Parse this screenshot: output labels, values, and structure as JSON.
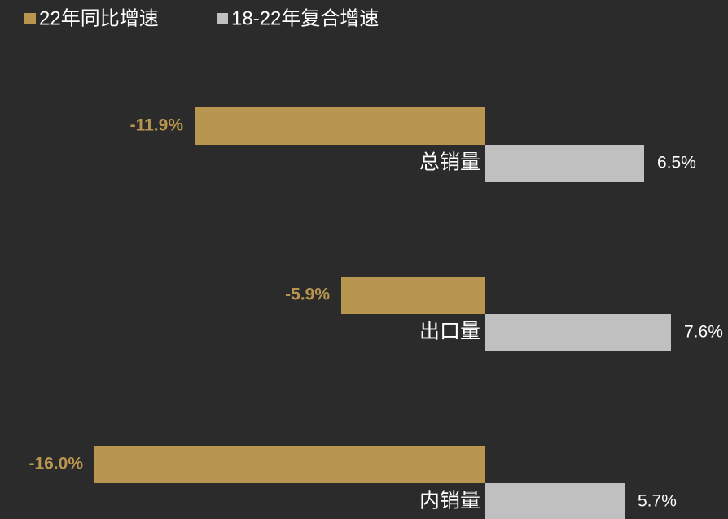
{
  "chart_data": {
    "type": "bar",
    "orientation": "horizontal",
    "categories": [
      "总销量",
      "出口量",
      "内销量"
    ],
    "series": [
      {
        "name": "22年同比增速",
        "color": "#b8964f",
        "values": [
          -11.9,
          -5.9,
          -16.0
        ],
        "value_labels": [
          "-11.9%",
          "-5.9%",
          "-16.0%"
        ]
      },
      {
        "name": "18-22年复合增速",
        "color": "#c0c0c0",
        "values": [
          6.5,
          7.6,
          5.7
        ],
        "value_labels": [
          "6.5%",
          "7.6%",
          "5.7%"
        ]
      }
    ],
    "background": "#2b2b2b"
  }
}
